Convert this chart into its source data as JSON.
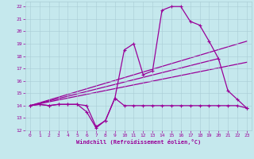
{
  "xlabel": "Windchill (Refroidissement éolien,°C)",
  "xlim": [
    -0.5,
    23.5
  ],
  "ylim": [
    12,
    22.4
  ],
  "yticks": [
    12,
    13,
    14,
    15,
    16,
    17,
    18,
    19,
    20,
    21,
    22
  ],
  "xticks": [
    0,
    1,
    2,
    3,
    4,
    5,
    6,
    7,
    8,
    9,
    10,
    11,
    12,
    13,
    14,
    15,
    16,
    17,
    18,
    19,
    20,
    21,
    22,
    23
  ],
  "bg_color": "#c5e8ed",
  "line_color": "#990099",
  "grid_color": "#aacdd5",
  "main_curve_x": [
    0,
    1,
    2,
    3,
    4,
    5,
    6,
    7,
    8,
    9,
    10,
    11,
    12,
    13,
    14,
    15,
    16,
    17,
    18,
    19,
    20,
    21,
    22,
    23
  ],
  "main_curve_y": [
    14.0,
    14.1,
    14.0,
    14.1,
    14.1,
    14.1,
    13.5,
    12.2,
    12.8,
    14.6,
    18.5,
    19.0,
    16.5,
    16.8,
    21.7,
    22.0,
    22.0,
    20.8,
    20.5,
    19.2,
    17.8,
    15.2,
    14.5,
    13.8
  ],
  "flat_curve_x": [
    0,
    1,
    2,
    3,
    4,
    5,
    6,
    7,
    8,
    9,
    10,
    11,
    12,
    13,
    14,
    15,
    16,
    17,
    18,
    19,
    20,
    21,
    22,
    23
  ],
  "flat_curve_y": [
    14.0,
    14.1,
    14.0,
    14.1,
    14.1,
    14.1,
    14.0,
    12.3,
    12.8,
    14.6,
    14.0,
    14.0,
    14.0,
    14.0,
    14.0,
    14.0,
    14.0,
    14.0,
    14.0,
    14.0,
    14.0,
    14.0,
    14.0,
    13.8
  ],
  "trend1_x": [
    0,
    23
  ],
  "trend1_y": [
    14.0,
    19.2
  ],
  "trend2_x": [
    0,
    20
  ],
  "trend2_y": [
    14.0,
    17.8
  ],
  "trend3_x": [
    0,
    23
  ],
  "trend3_y": [
    14.0,
    17.5
  ]
}
